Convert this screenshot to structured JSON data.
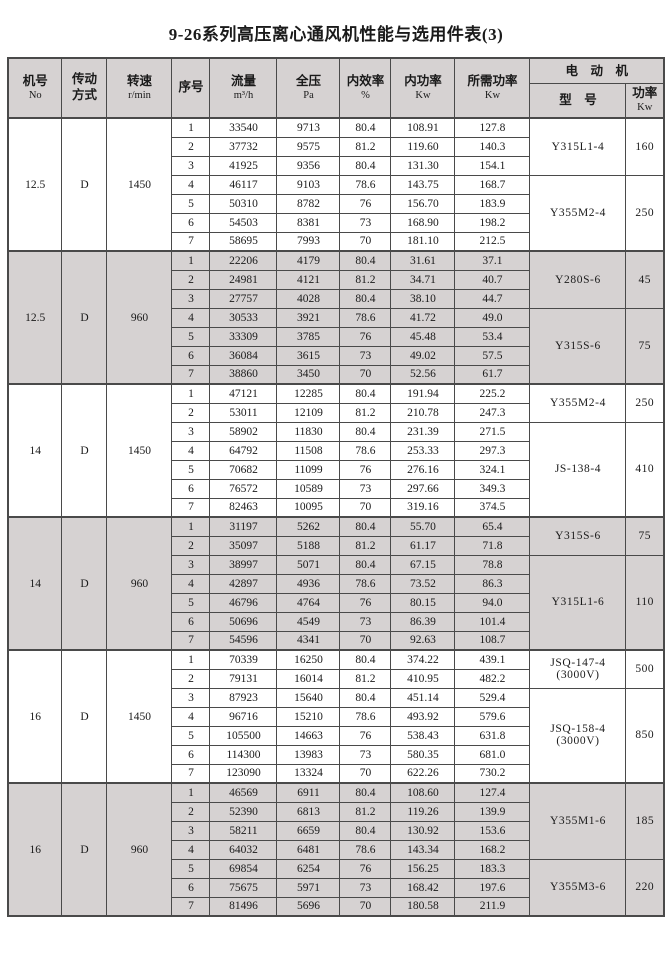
{
  "title": "9-26系列高压离心通风机性能与选用件表(3)",
  "colors": {
    "row_shading": "#d6d2d2",
    "border": "#4a4a4a"
  },
  "header": {
    "machine_no": {
      "l1": "机号",
      "l2": "No"
    },
    "drive": {
      "l1": "传动",
      "l2": "方式"
    },
    "speed": {
      "l1": "转速",
      "l2": "r/min"
    },
    "seq": "序号",
    "flow": {
      "l1": "流量",
      "l2": "m³/h"
    },
    "pressure": {
      "l1": "全压",
      "l2": "Pa"
    },
    "efficiency": {
      "l1": "内效率",
      "l2": "%"
    },
    "internal_power": {
      "l1": "内功率",
      "l2": "Kw"
    },
    "required_power": {
      "l1": "所需功率",
      "l2": "Kw"
    },
    "motor_group": "电　动　机",
    "motor_model": "型　号",
    "motor_power": {
      "l1": "功率",
      "l2": "Kw"
    }
  },
  "blocks": [
    {
      "machine_no": "12.5",
      "drive": "D",
      "speed": "1450",
      "shaded": false,
      "rows": [
        [
          "1",
          "33540",
          "9713",
          "80.4",
          "108.91",
          "127.8"
        ],
        [
          "2",
          "37732",
          "9575",
          "81.2",
          "119.60",
          "140.3"
        ],
        [
          "3",
          "41925",
          "9356",
          "80.4",
          "131.30",
          "154.1"
        ],
        [
          "4",
          "46117",
          "9103",
          "78.6",
          "143.75",
          "168.7"
        ],
        [
          "5",
          "50310",
          "8782",
          "76",
          "156.70",
          "183.9"
        ],
        [
          "6",
          "54503",
          "8381",
          "73",
          "168.90",
          "198.2"
        ],
        [
          "7",
          "58695",
          "7993",
          "70",
          "181.10",
          "212.5"
        ]
      ],
      "motors": [
        {
          "model": "Y315L1-4",
          "note": "",
          "power": "160",
          "span": 3
        },
        {
          "model": "Y355M2-4",
          "note": "",
          "power": "250",
          "span": 4
        }
      ]
    },
    {
      "machine_no": "12.5",
      "drive": "D",
      "speed": "960",
      "shaded": true,
      "rows": [
        [
          "1",
          "22206",
          "4179",
          "80.4",
          "31.61",
          "37.1"
        ],
        [
          "2",
          "24981",
          "4121",
          "81.2",
          "34.71",
          "40.7"
        ],
        [
          "3",
          "27757",
          "4028",
          "80.4",
          "38.10",
          "44.7"
        ],
        [
          "4",
          "30533",
          "3921",
          "78.6",
          "41.72",
          "49.0"
        ],
        [
          "5",
          "33309",
          "3785",
          "76",
          "45.48",
          "53.4"
        ],
        [
          "6",
          "36084",
          "3615",
          "73",
          "49.02",
          "57.5"
        ],
        [
          "7",
          "38860",
          "3450",
          "70",
          "52.56",
          "61.7"
        ]
      ],
      "motors": [
        {
          "model": "Y280S-6",
          "note": "",
          "power": "45",
          "span": 3
        },
        {
          "model": "Y315S-6",
          "note": "",
          "power": "75",
          "span": 4
        }
      ]
    },
    {
      "machine_no": "14",
      "drive": "D",
      "speed": "1450",
      "shaded": false,
      "rows": [
        [
          "1",
          "47121",
          "12285",
          "80.4",
          "191.94",
          "225.2"
        ],
        [
          "2",
          "53011",
          "12109",
          "81.2",
          "210.78",
          "247.3"
        ],
        [
          "3",
          "58902",
          "11830",
          "80.4",
          "231.39",
          "271.5"
        ],
        [
          "4",
          "64792",
          "11508",
          "78.6",
          "253.33",
          "297.3"
        ],
        [
          "5",
          "70682",
          "11099",
          "76",
          "276.16",
          "324.1"
        ],
        [
          "6",
          "76572",
          "10589",
          "73",
          "297.66",
          "349.3"
        ],
        [
          "7",
          "82463",
          "10095",
          "70",
          "319.16",
          "374.5"
        ]
      ],
      "motors": [
        {
          "model": "Y355M2-4",
          "note": "",
          "power": "250",
          "span": 2
        },
        {
          "model": "JS-138-4",
          "note": "",
          "power": "410",
          "span": 5
        }
      ]
    },
    {
      "machine_no": "14",
      "drive": "D",
      "speed": "960",
      "shaded": true,
      "rows": [
        [
          "1",
          "31197",
          "5262",
          "80.4",
          "55.70",
          "65.4"
        ],
        [
          "2",
          "35097",
          "5188",
          "81.2",
          "61.17",
          "71.8"
        ],
        [
          "3",
          "38997",
          "5071",
          "80.4",
          "67.15",
          "78.8"
        ],
        [
          "4",
          "42897",
          "4936",
          "78.6",
          "73.52",
          "86.3"
        ],
        [
          "5",
          "46796",
          "4764",
          "76",
          "80.15",
          "94.0"
        ],
        [
          "6",
          "50696",
          "4549",
          "73",
          "86.39",
          "101.4"
        ],
        [
          "7",
          "54596",
          "4341",
          "70",
          "92.63",
          "108.7"
        ]
      ],
      "motors": [
        {
          "model": "Y315S-6",
          "note": "",
          "power": "75",
          "span": 2
        },
        {
          "model": "Y315L1-6",
          "note": "",
          "power": "110",
          "span": 5
        }
      ]
    },
    {
      "machine_no": "16",
      "drive": "D",
      "speed": "1450",
      "shaded": false,
      "rows": [
        [
          "1",
          "70339",
          "16250",
          "80.4",
          "374.22",
          "439.1"
        ],
        [
          "2",
          "79131",
          "16014",
          "81.2",
          "410.95",
          "482.2"
        ],
        [
          "3",
          "87923",
          "15640",
          "80.4",
          "451.14",
          "529.4"
        ],
        [
          "4",
          "96716",
          "15210",
          "78.6",
          "493.92",
          "579.6"
        ],
        [
          "5",
          "105500",
          "14663",
          "76",
          "538.43",
          "631.8"
        ],
        [
          "6",
          "114300",
          "13983",
          "73",
          "580.35",
          "681.0"
        ],
        [
          "7",
          "123090",
          "13324",
          "70",
          "622.26",
          "730.2"
        ]
      ],
      "motors": [
        {
          "model": "JSQ-147-4",
          "note": "(3000V)",
          "power": "500",
          "span": 2
        },
        {
          "model": "JSQ-158-4",
          "note": "(3000V)",
          "power": "850",
          "span": 5
        }
      ]
    },
    {
      "machine_no": "16",
      "drive": "D",
      "speed": "960",
      "shaded": true,
      "rows": [
        [
          "1",
          "46569",
          "6911",
          "80.4",
          "108.60",
          "127.4"
        ],
        [
          "2",
          "52390",
          "6813",
          "81.2",
          "119.26",
          "139.9"
        ],
        [
          "3",
          "58211",
          "6659",
          "80.4",
          "130.92",
          "153.6"
        ],
        [
          "4",
          "64032",
          "6481",
          "78.6",
          "143.34",
          "168.2"
        ],
        [
          "5",
          "69854",
          "6254",
          "76",
          "156.25",
          "183.3"
        ],
        [
          "6",
          "75675",
          "5971",
          "73",
          "168.42",
          "197.6"
        ],
        [
          "7",
          "81496",
          "5696",
          "70",
          "180.58",
          "211.9"
        ]
      ],
      "motors": [
        {
          "model": "Y355M1-6",
          "note": "",
          "power": "185",
          "span": 4
        },
        {
          "model": "Y355M3-6",
          "note": "",
          "power": "220",
          "span": 3
        }
      ]
    }
  ]
}
